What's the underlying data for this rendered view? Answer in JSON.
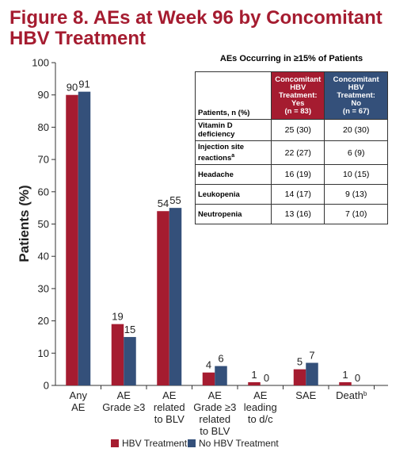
{
  "chart_data": {
    "type": "bar",
    "title": [
      "Figure 8. AEs at Week 96 by Concomitant",
      "HBV Treatment"
    ],
    "y_label": "Patients (%)",
    "categories": [
      [
        "Any",
        "AE"
      ],
      [
        "AE",
        "Grade ≥3"
      ],
      [
        "AE",
        "related",
        "to BLV"
      ],
      [
        "AE",
        "Grade ≥3",
        "related",
        "to BLV"
      ],
      [
        "AE",
        "leading",
        "to d/c"
      ],
      [
        "SAE"
      ],
      [
        {
          "text": "Death",
          "sup": "b"
        }
      ]
    ],
    "series": [
      {
        "name": "HBV Treatment",
        "color": "#a51c30",
        "values": [
          90,
          19,
          54,
          4,
          1,
          5,
          1
        ]
      },
      {
        "name": "No HBV Treatment",
        "color": "#34507a",
        "values": [
          91,
          15,
          55,
          6,
          0,
          7,
          0
        ]
      }
    ],
    "ylim": [
      0,
      100
    ],
    "yticks": [
      0,
      10,
      20,
      30,
      40,
      50,
      60,
      70,
      80,
      90,
      100
    ]
  },
  "table": {
    "title": "AEs Occurring in ≥15% of Patients",
    "columns": [
      [
        "Patients, n (%)"
      ],
      [
        "Concomitant",
        "HBV",
        "Treatment:",
        "Yes",
        "(n = 83)"
      ],
      [
        "Concomitant",
        "HBV",
        "Treatment:",
        "No",
        "(n = 67)"
      ]
    ],
    "rows": [
      [
        [
          "Vitamin D",
          "deficiency"
        ],
        "25 (30)",
        "20 (30)"
      ],
      [
        [
          "Injection site",
          {
            "text": "reactions",
            "sup": "a"
          }
        ],
        "22 (27)",
        "6 (9)"
      ],
      [
        [
          "Headache"
        ],
        "16 (19)",
        "10 (15)"
      ],
      [
        [
          "Leukopenia"
        ],
        "14 (17)",
        "9 (13)"
      ],
      [
        [
          "Neutropenia"
        ],
        "13 (16)",
        "7 (10)"
      ]
    ]
  }
}
